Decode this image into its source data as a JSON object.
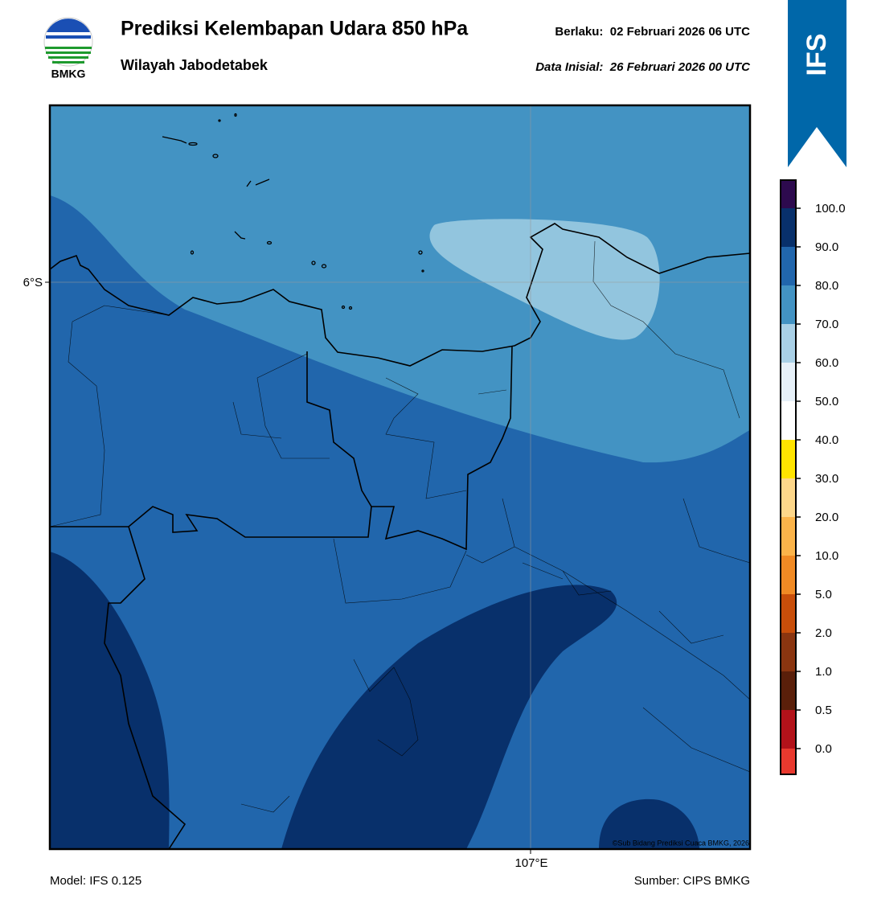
{
  "header": {
    "title": "Prediksi Kelembapan Udara 850 hPa",
    "subtitle": "Wilayah Jabodetabek",
    "valid": "Berlaku:  02 Februari 2026 06 UTC",
    "init": "Data Inisial:  26 Februari 2026 00 UTC",
    "logo": "BMKG",
    "banner": "IFS"
  },
  "map": {
    "lat_label": "6°S",
    "lon_label": "107°E",
    "copyright": "©Sub Bidang Prediksi Cuaca BMKG, 2026"
  },
  "colorbar": {
    "labels": [
      "0.0",
      "0.5",
      "1.0",
      "2.0",
      "5.0",
      "10.0",
      "20.0",
      "30.0",
      "40.0",
      "50.0",
      "60.0",
      "70.0",
      "80.0",
      "90.0",
      "100.0"
    ],
    "colors": [
      "#e8392e",
      "#b2121a",
      "#5a1f0a",
      "#8a3510",
      "#c84e0a",
      "#f08a24",
      "#fbb44a",
      "#fdd78a",
      "#ffe400",
      "#ffffff",
      "#e6f0f8",
      "#a9d0e6",
      "#4393c3",
      "#2166ac",
      "#08306b",
      "#2d0a4e"
    ]
  },
  "footer": {
    "model": "Model: IFS 0.125",
    "source": "Sumber: CIPS BMKG"
  }
}
